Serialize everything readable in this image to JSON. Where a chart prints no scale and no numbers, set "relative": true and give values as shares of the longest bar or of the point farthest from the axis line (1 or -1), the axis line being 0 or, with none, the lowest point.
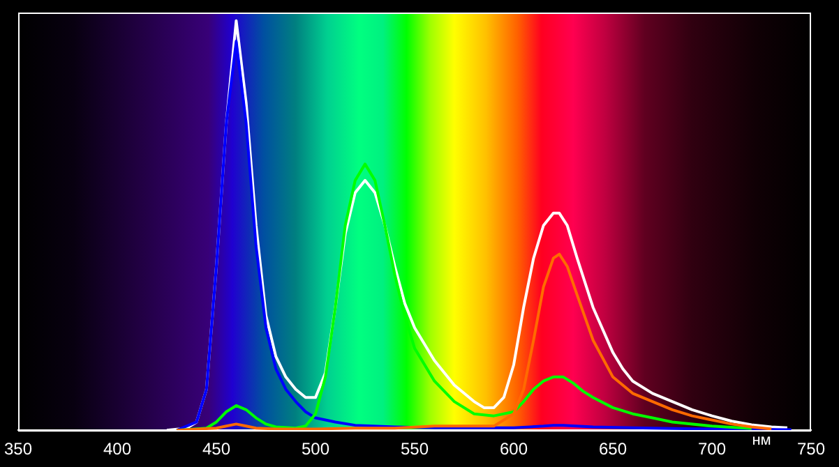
{
  "chart_data": {
    "type": "line",
    "xlabel": "нм",
    "relative": true,
    "xlim": [
      350,
      750
    ],
    "xticks": [
      350,
      400,
      450,
      500,
      550,
      600,
      650,
      700,
      750
    ],
    "grid": false,
    "legend": false,
    "marker": "none",
    "line_style": "solid",
    "series": [
      {
        "color": "#ff6a00",
        "x": [
          430,
          450,
          455,
          460,
          465,
          470,
          480,
          500,
          520,
          540,
          560,
          580,
          590,
          600,
          605,
          610,
          615,
          620,
          623,
          627,
          632,
          640,
          650,
          660,
          670,
          680,
          690,
          700,
          710,
          720,
          730
        ],
        "values": [
          0,
          0.005,
          0.01,
          0.015,
          0.01,
          0.005,
          0.003,
          0.003,
          0.005,
          0.005,
          0.01,
          0.01,
          0.01,
          0.04,
          0.1,
          0.22,
          0.35,
          0.42,
          0.43,
          0.4,
          0.33,
          0.22,
          0.13,
          0.09,
          0.07,
          0.05,
          0.035,
          0.025,
          0.015,
          0.008,
          0.003
        ]
      },
      {
        "color": "#00ff00",
        "x": [
          430,
          445,
          450,
          455,
          460,
          465,
          470,
          475,
          480,
          490,
          495,
          500,
          505,
          510,
          515,
          520,
          525,
          530,
          535,
          540,
          545,
          550,
          560,
          570,
          580,
          590,
          600,
          605,
          610,
          615,
          620,
          625,
          630,
          635,
          640,
          650,
          660,
          670,
          680,
          700,
          720
        ],
        "values": [
          0,
          0.005,
          0.02,
          0.045,
          0.06,
          0.05,
          0.03,
          0.015,
          0.008,
          0.005,
          0.01,
          0.04,
          0.13,
          0.3,
          0.5,
          0.61,
          0.65,
          0.61,
          0.5,
          0.38,
          0.28,
          0.2,
          0.12,
          0.07,
          0.04,
          0.035,
          0.045,
          0.07,
          0.1,
          0.12,
          0.13,
          0.13,
          0.115,
          0.095,
          0.08,
          0.055,
          0.04,
          0.03,
          0.02,
          0.01,
          0.004
        ]
      },
      {
        "color": "#0000ff",
        "x": [
          430,
          440,
          445,
          450,
          455,
          460,
          465,
          470,
          475,
          480,
          485,
          490,
          495,
          500,
          510,
          520,
          540,
          560,
          600,
          615,
          620,
          625,
          640,
          660,
          680,
          700,
          720,
          740
        ],
        "values": [
          0,
          0.02,
          0.1,
          0.4,
          0.75,
          0.95,
          0.75,
          0.45,
          0.25,
          0.15,
          0.1,
          0.07,
          0.045,
          0.03,
          0.02,
          0.012,
          0.008,
          0.006,
          0.006,
          0.01,
          0.012,
          0.012,
          0.008,
          0.006,
          0.004,
          0.003,
          0.002,
          0.001
        ]
      },
      {
        "color": "#ffffff",
        "x": [
          425,
          435,
          440,
          445,
          450,
          455,
          460,
          465,
          470,
          475,
          480,
          485,
          490,
          495,
          500,
          505,
          510,
          515,
          520,
          525,
          530,
          535,
          540,
          545,
          550,
          560,
          570,
          580,
          585,
          590,
          595,
          600,
          605,
          610,
          615,
          620,
          623,
          627,
          632,
          640,
          650,
          655,
          660,
          670,
          680,
          690,
          700,
          710,
          720,
          730,
          738
        ],
        "values": [
          0,
          0.005,
          0.02,
          0.1,
          0.4,
          0.75,
          1,
          0.8,
          0.5,
          0.28,
          0.18,
          0.13,
          0.1,
          0.08,
          0.08,
          0.14,
          0.3,
          0.48,
          0.58,
          0.61,
          0.58,
          0.5,
          0.4,
          0.31,
          0.25,
          0.17,
          0.11,
          0.07,
          0.055,
          0.055,
          0.08,
          0.16,
          0.3,
          0.42,
          0.5,
          0.53,
          0.53,
          0.5,
          0.42,
          0.3,
          0.19,
          0.15,
          0.12,
          0.09,
          0.07,
          0.05,
          0.035,
          0.022,
          0.013,
          0.008,
          0.006
        ]
      }
    ]
  }
}
